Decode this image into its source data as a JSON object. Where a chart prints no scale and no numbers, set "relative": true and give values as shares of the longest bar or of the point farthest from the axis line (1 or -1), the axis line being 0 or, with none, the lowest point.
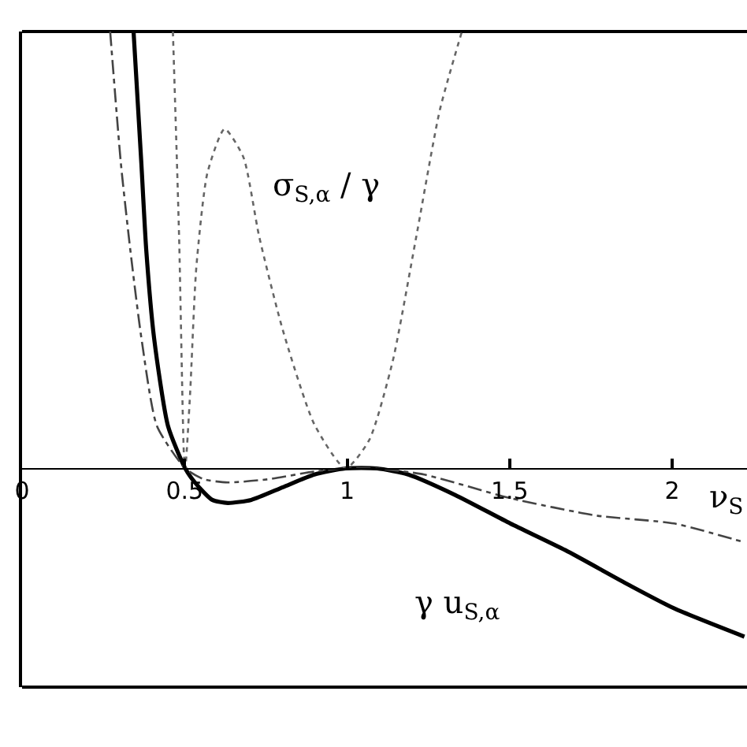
{
  "chart_data": {
    "type": "line",
    "relative": true,
    "xlabel": "ν$_{S}$",
    "xlim": [
      0,
      2.23
    ],
    "xticks": [
      0,
      0.5,
      1,
      1.5,
      2
    ],
    "grid": false,
    "marker": "none",
    "series": [
      {
        "color": "#000000",
        "line_style": "solid",
        "x": [
          0.343,
          0.367,
          0.382,
          0.406,
          0.449,
          0.502,
          0.536,
          0.585,
          0.633,
          0.705,
          0.802,
          0.899,
          0.995,
          1.092,
          1.188,
          1.333,
          1.502,
          1.671,
          1.865,
          2.005,
          2.222
        ],
        "values": [
          1.0,
          0.698,
          0.5,
          0.299,
          0.097,
          0,
          -0.036,
          -0.072,
          -0.079,
          -0.072,
          -0.043,
          -0.014,
          0,
          0,
          -0.014,
          -0.061,
          -0.126,
          -0.187,
          -0.266,
          -0.32,
          -0.385
        ]
      },
      {
        "color": "#444444",
        "line_style": "dashed",
        "x": [
          0.271,
          0.304,
          0.333,
          0.367,
          0.415,
          0.502,
          0.56,
          0.633,
          0.754,
          0.899,
          0.995,
          1.092,
          1.237,
          1.502,
          1.768,
          2.005,
          2.222
        ],
        "values": [
          1.0,
          0.698,
          0.5,
          0.299,
          0.097,
          0,
          -0.025,
          -0.032,
          -0.025,
          -0.007,
          0,
          0,
          -0.014,
          -0.068,
          -0.108,
          -0.126,
          -0.169
        ]
      },
      {
        "color": "#666666",
        "line_style": "dotted",
        "x": [
          0.464,
          0.483,
          0.498,
          0.502,
          0.517,
          0.536,
          0.57,
          0.623,
          0.681,
          0.729,
          0.802,
          0.899,
          0.995,
          1.068,
          1.14,
          1.213,
          1.285,
          1.353
        ],
        "values": [
          1.0,
          0.532,
          0.029,
          0,
          0.173,
          0.46,
          0.676,
          0.777,
          0.712,
          0.532,
          0.317,
          0.101,
          0,
          0.065,
          0.245,
          0.532,
          0.82,
          1.0
        ]
      }
    ],
    "annotations": [
      "σ$_{S,α}$ / γ",
      "γ u$_{S,α}$"
    ]
  }
}
